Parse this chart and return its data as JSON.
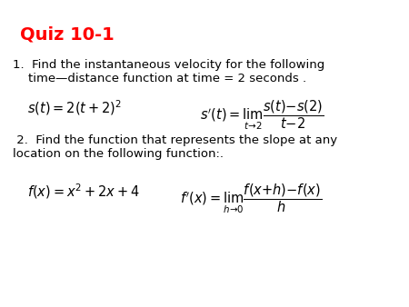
{
  "title": "Quiz 10-1",
  "title_color": "#FF0000",
  "title_fontsize": 14,
  "bg_color": "#FFFFFF",
  "q1_line1": "1.  Find the instantaneous velocity for the following",
  "q1_line2": "    time—distance function at time = 2 seconds .",
  "q1_formula_left": "$s(t) = 2(t+2)^2$",
  "q1_formula_right": "$s^{\\prime}(t) = \\lim_{t \\to 2} \\dfrac{s(t)-s(2)}{t-2}$",
  "q2_line1": " 2.  Find the function that represents the slope at any",
  "q2_line2": "location on the following function:.",
  "q2_formula_left": "$f(x) = x^2 + 2x + 4$",
  "q2_formula_right": "$f^{\\prime}(x) = \\lim_{h \\to 0} \\dfrac{f(x+h)-f(x)}{h}$",
  "text_fontsize": 9.5,
  "formula_fontsize": 10.5
}
